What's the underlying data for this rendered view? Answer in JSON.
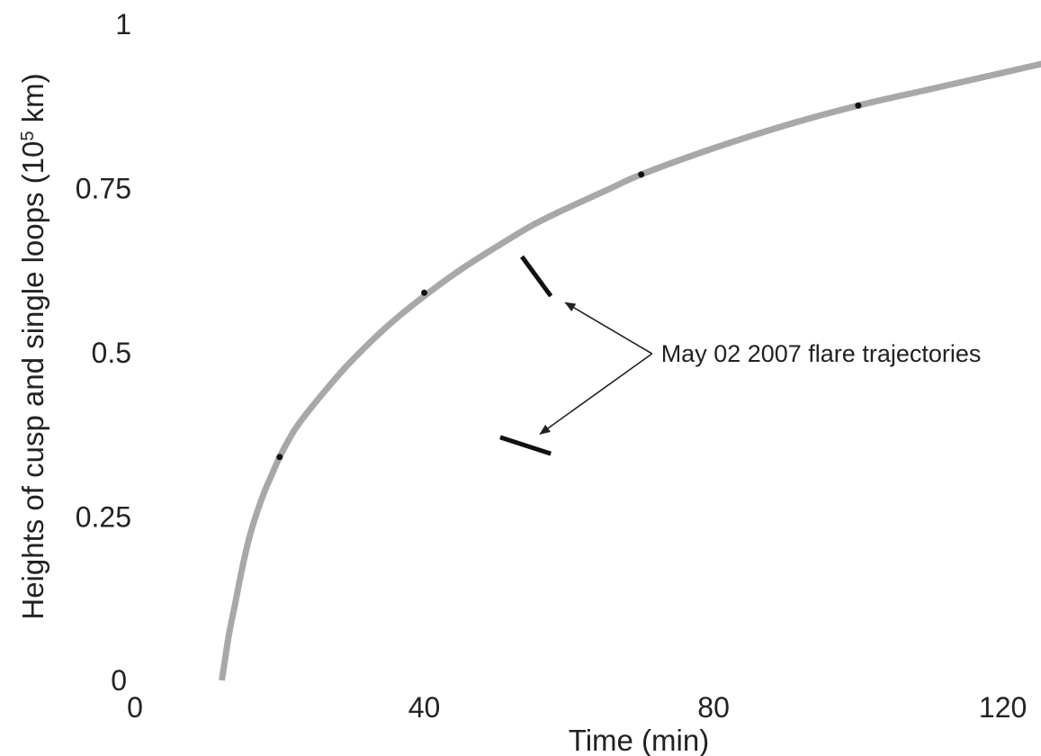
{
  "chart_data": {
    "type": "line",
    "title": "",
    "xlabel": "Time (min)",
    "ylabel_prefix": "Heights of cusp and single loops (10",
    "ylabel_exponent": "5",
    "ylabel_suffix": " km)",
    "xlim": [
      0,
      130
    ],
    "ylim": [
      0,
      1
    ],
    "grid": false,
    "legend": "none",
    "x_ticks": [
      {
        "value": 0,
        "label": "0"
      },
      {
        "value": 40,
        "label": "40"
      },
      {
        "value": 80,
        "label": "80"
      },
      {
        "value": 120,
        "label": "120"
      }
    ],
    "y_ticks": [
      {
        "value": 0,
        "label": "0"
      },
      {
        "value": 0.25,
        "label": "0.25"
      },
      {
        "value": 0.5,
        "label": "0.5"
      },
      {
        "value": 0.75,
        "label": "0.75"
      },
      {
        "value": 1,
        "label": "1"
      }
    ],
    "series": [
      {
        "color": "#a8a8a8",
        "x": [
          12,
          12.5,
          13,
          14,
          15,
          16,
          17,
          18,
          19,
          20,
          22,
          24,
          27,
          30,
          35,
          40,
          45,
          50,
          55,
          60,
          65,
          70,
          80,
          90,
          100,
          110,
          120,
          130
        ],
        "y": [
          0,
          0.035,
          0.07,
          0.125,
          0.18,
          0.225,
          0.26,
          0.29,
          0.315,
          0.34,
          0.38,
          0.41,
          0.45,
          0.487,
          0.54,
          0.585,
          0.625,
          0.66,
          0.693,
          0.72,
          0.745,
          0.77,
          0.81,
          0.845,
          0.875,
          0.9,
          0.925,
          0.95
        ]
      }
    ],
    "markers": [
      {
        "x": 20,
        "y": 0.34
      },
      {
        "x": 40,
        "y": 0.59
      },
      {
        "x": 70,
        "y": 0.77
      },
      {
        "x": 100,
        "y": 0.875
      }
    ],
    "trajectories": [
      {
        "x": [
          53.5,
          57.5
        ],
        "y": [
          0.645,
          0.585
        ]
      },
      {
        "x": [
          50.5,
          57.5
        ],
        "y": [
          0.37,
          0.345
        ]
      }
    ],
    "trajectory_color": "#111111",
    "annotation": {
      "text": "May 02 2007 flare trajectories",
      "anchor": {
        "x": 70,
        "y": 0.5
      },
      "targets": [
        {
          "x": 59.5,
          "y": 0.575
        },
        {
          "x": 56,
          "y": 0.375
        }
      ]
    }
  }
}
